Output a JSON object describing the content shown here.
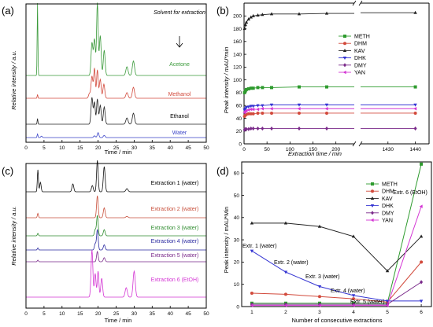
{
  "chart_data": [
    {
      "type": "line",
      "panel": "(a)",
      "xlabel": "Time / min",
      "ylabel": "Relative intensity / a.u.",
      "xlim": [
        0,
        50
      ],
      "xticks": [
        0,
        5,
        10,
        15,
        20,
        25,
        30,
        35,
        40,
        45,
        50
      ],
      "annotation": "Solvent for extraction",
      "traces": [
        {
          "name": "Acetone",
          "color": "#3a9a3a",
          "peaks": [
            [
              3.2,
              1.0,
              0.1
            ],
            [
              18.3,
              0.45,
              0.25
            ],
            [
              19.0,
              0.5,
              0.25
            ],
            [
              19.8,
              1.0,
              0.22
            ],
            [
              20.6,
              0.55,
              0.25
            ],
            [
              21.7,
              0.35,
              0.25
            ],
            [
              28.0,
              0.12,
              0.3
            ],
            [
              29.8,
              0.2,
              0.3
            ]
          ]
        },
        {
          "name": "Methanol",
          "color": "#d24a3c",
          "peaks": [
            [
              3.2,
              0.12,
              0.1
            ],
            [
              17.6,
              0.15,
              0.25
            ],
            [
              18.3,
              0.7,
              0.25
            ],
            [
              19.0,
              0.95,
              0.22
            ],
            [
              19.8,
              0.9,
              0.22
            ],
            [
              20.6,
              0.6,
              0.25
            ],
            [
              21.6,
              0.45,
              0.25
            ],
            [
              28.0,
              0.18,
              0.3
            ],
            [
              29.8,
              0.35,
              0.3
            ]
          ]
        },
        {
          "name": "Ethanol",
          "color": "#222222",
          "peaks": [
            [
              3.2,
              0.18,
              0.1
            ],
            [
              18.3,
              0.85,
              0.25
            ],
            [
              19.0,
              0.7,
              0.22
            ],
            [
              19.8,
              0.8,
              0.22
            ],
            [
              20.6,
              0.6,
              0.25
            ],
            [
              21.7,
              0.55,
              0.25
            ],
            [
              28.0,
              0.2,
              0.3
            ],
            [
              29.8,
              0.35,
              0.3
            ]
          ]
        },
        {
          "name": "Water",
          "color": "#3a44c8",
          "peaks": [
            [
              3.2,
              0.25,
              0.12
            ],
            [
              4.3,
              0.1,
              0.2
            ],
            [
              19.0,
              0.12,
              0.25
            ],
            [
              20.0,
              0.35,
              0.22
            ],
            [
              21.7,
              0.15,
              0.25
            ]
          ]
        }
      ]
    },
    {
      "type": "scatter",
      "panel": "(b)",
      "xlabel": "Extraction time / min",
      "ylabel": "Peak intensity / mAU*min",
      "ylim": [
        0,
        220
      ],
      "yticks": [
        0,
        20,
        40,
        60,
        80,
        100,
        120,
        140,
        160,
        180,
        200
      ],
      "xticks_left": [
        0,
        50,
        100,
        150,
        200
      ],
      "xticks_right": [
        1430,
        1440
      ],
      "axis_break": true,
      "x": [
        1,
        3,
        5,
        10,
        15,
        20,
        30,
        40,
        60,
        120,
        180,
        1440
      ],
      "series": [
        {
          "name": "METH",
          "color": "#2e9b2e",
          "marker": "square",
          "values": [
            80,
            83,
            85,
            86,
            87,
            87,
            88,
            88,
            88,
            89,
            89,
            89
          ]
        },
        {
          "name": "DHM",
          "color": "#d24a3c",
          "marker": "circle",
          "values": [
            43,
            45,
            46,
            47,
            47,
            47,
            48,
            48,
            48,
            48,
            48,
            48
          ]
        },
        {
          "name": "KAV",
          "color": "#222222",
          "marker": "triangle-up",
          "values": [
            180,
            186,
            190,
            195,
            198,
            200,
            201,
            202,
            203,
            203,
            204,
            205
          ]
        },
        {
          "name": "DHK",
          "color": "#3434d2",
          "marker": "triangle-down",
          "values": [
            53,
            55,
            57,
            58,
            59,
            59,
            60,
            60,
            61,
            61,
            61,
            61
          ]
        },
        {
          "name": "DMY",
          "color": "#7a2a8a",
          "marker": "diamond",
          "values": [
            22,
            23,
            23,
            23,
            24,
            24,
            24,
            24,
            24,
            24,
            24,
            24
          ]
        },
        {
          "name": "YAN",
          "color": "#d436d4",
          "marker": "triangle-left",
          "values": [
            49,
            51,
            52,
            53,
            54,
            54,
            54,
            55,
            55,
            55,
            55,
            55
          ]
        }
      ]
    },
    {
      "type": "line",
      "panel": "(c)",
      "xlabel": "Time / min",
      "ylabel": "Relative intensity / a.u.",
      "xlim": [
        0,
        50
      ],
      "xticks": [
        0,
        5,
        10,
        15,
        20,
        25,
        30,
        35,
        40,
        45,
        50
      ],
      "traces": [
        {
          "name": "Extraction 1 (water)",
          "color": "#111111",
          "peaks": [
            [
              3.3,
              0.7,
              0.15
            ],
            [
              4.0,
              0.3,
              0.2
            ],
            [
              13.0,
              0.25,
              0.25
            ],
            [
              18.4,
              0.2,
              0.25
            ],
            [
              19.8,
              1.0,
              0.22
            ],
            [
              21.7,
              0.8,
              0.25
            ],
            [
              28.0,
              0.1,
              0.3
            ]
          ]
        },
        {
          "name": "Extraction 2 (water)",
          "color": "#c8503c",
          "peaks": [
            [
              3.3,
              0.2,
              0.15
            ],
            [
              19.8,
              1.0,
              0.22
            ],
            [
              21.7,
              0.45,
              0.25
            ],
            [
              28.0,
              0.06,
              0.3
            ]
          ]
        },
        {
          "name": "Extraction 3 (water)",
          "color": "#2e8b2e",
          "peaks": [
            [
              3.3,
              0.12,
              0.15
            ],
            [
              19.2,
              0.3,
              0.22
            ],
            [
              19.8,
              1.0,
              0.22
            ],
            [
              21.7,
              0.3,
              0.25
            ]
          ]
        },
        {
          "name": "Extraction 4 (water)",
          "color": "#2a2aa0",
          "peaks": [
            [
              3.3,
              0.1,
              0.15
            ],
            [
              19.2,
              0.3,
              0.22
            ],
            [
              19.8,
              1.0,
              0.22
            ],
            [
              21.7,
              0.25,
              0.25
            ]
          ]
        },
        {
          "name": "Extraction 5 (water)",
          "color": "#7a2a8a",
          "peaks": [
            [
              3.3,
              0.08,
              0.15
            ],
            [
              19.8,
              0.5,
              0.22
            ],
            [
              21.7,
              0.2,
              0.25
            ]
          ]
        },
        {
          "name": "Extraction 6 (EtOH)",
          "color": "#d436d4",
          "peaks": [
            [
              18.3,
              1.0,
              0.25
            ],
            [
              19.2,
              0.5,
              0.22
            ],
            [
              20.0,
              0.55,
              0.22
            ],
            [
              21.0,
              0.4,
              0.25
            ],
            [
              27.8,
              0.2,
              0.3
            ],
            [
              30.0,
              0.55,
              0.3
            ]
          ]
        }
      ]
    },
    {
      "type": "line",
      "panel": "(d)",
      "xlabel": "Number of consecutive extractions",
      "ylabel": "Peak intensity / mAU*Min",
      "xlim": [
        0.7,
        6.3
      ],
      "ylim": [
        0,
        65
      ],
      "xticks": [
        1,
        2,
        3,
        4,
        5,
        6
      ],
      "yticks": [
        0,
        10,
        20,
        30,
        40,
        50,
        60
      ],
      "x": [
        1,
        2,
        3,
        4,
        5,
        6
      ],
      "series": [
        {
          "name": "METH",
          "color": "#2e9b2e",
          "marker": "square",
          "values": [
            1.5,
            1.5,
            1.5,
            1.5,
            1.5,
            64
          ]
        },
        {
          "name": "DHM",
          "color": "#d24a3c",
          "marker": "circle",
          "values": [
            6,
            5.5,
            4.5,
            3.5,
            2,
            20
          ]
        },
        {
          "name": "KAV",
          "color": "#222222",
          "marker": "triangle-up",
          "values": [
            37.5,
            37.5,
            36,
            31.5,
            16,
            31.5
          ]
        },
        {
          "name": "DHK",
          "color": "#3434d2",
          "marker": "triangle-down",
          "values": [
            25,
            15.5,
            9,
            5,
            2.5,
            2.5
          ]
        },
        {
          "name": "DMY",
          "color": "#7a2a8a",
          "marker": "diamond",
          "values": [
            1,
            1,
            1,
            1,
            1,
            11
          ]
        },
        {
          "name": "YAN",
          "color": "#d436d4",
          "marker": "triangle-left",
          "values": [
            0.5,
            0.5,
            0.5,
            0.5,
            0.5,
            45
          ]
        }
      ],
      "annotations": [
        "Extr. 1 (water)",
        "Extr. 2 (water)",
        "Extr. 3 (water)",
        "Extr. 4 (water)",
        "Extr. 5 (water)",
        "Extr. 6 (EtOH)"
      ]
    }
  ]
}
